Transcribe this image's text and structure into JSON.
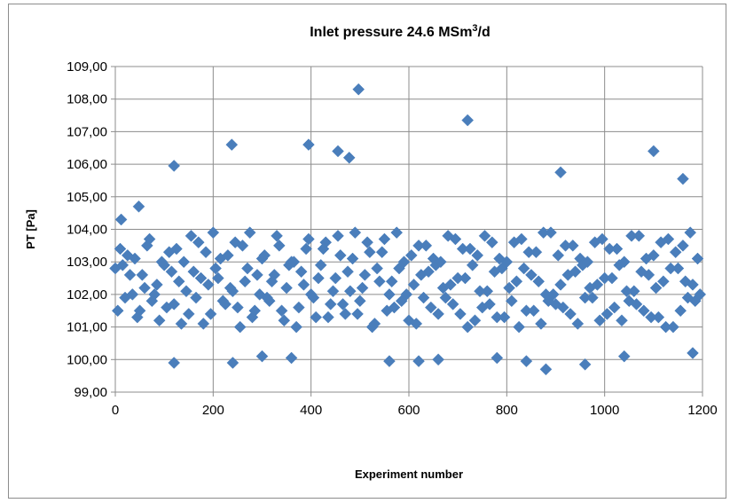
{
  "chart_data": {
    "type": "scatter",
    "title": "Inlet pressure 24.6 MSm",
    "title_superscript": "3",
    "title_suffix": "/d",
    "xlabel": "Experiment number",
    "ylabel": "PT [Pa]",
    "xlim": [
      0,
      1200
    ],
    "ylim": [
      99,
      109
    ],
    "xticks": [
      0,
      200,
      400,
      600,
      800,
      1000,
      1200
    ],
    "yticks": [
      99,
      100,
      101,
      102,
      103,
      104,
      105,
      106,
      107,
      108,
      109
    ],
    "xtick_labels": [
      "0",
      "200",
      "400",
      "600",
      "800",
      "1000",
      "1200"
    ],
    "ytick_labels": [
      "99,00",
      "100,00",
      "101,00",
      "102,00",
      "103,00",
      "104,00",
      "105,00",
      "106,00",
      "107,00",
      "108,00",
      "109,00"
    ],
    "grid": true,
    "legend": "none",
    "marker": "diamond",
    "marker_color": "#4a7ebb",
    "series": [
      {
        "x": [
          0,
          10,
          20,
          30,
          40,
          50,
          60,
          70,
          80,
          90,
          100,
          110,
          120,
          130,
          140,
          150,
          160,
          170,
          180,
          190,
          200,
          210,
          220,
          230,
          240,
          250,
          260,
          270,
          280,
          290,
          300,
          310,
          320,
          330,
          340,
          350,
          360,
          370,
          380,
          390,
          400,
          410,
          420,
          430,
          440,
          450,
          460,
          470,
          480,
          490,
          500,
          510,
          520,
          530,
          540,
          550,
          560,
          570,
          580,
          590,
          600,
          610,
          620,
          630,
          640,
          650,
          660,
          670,
          680,
          690,
          700,
          710,
          720,
          730,
          740,
          750,
          760,
          770,
          780,
          790,
          800,
          810,
          820,
          830,
          840,
          850,
          860,
          870,
          880,
          890,
          900,
          910,
          920,
          930,
          940,
          950,
          960,
          970,
          980,
          990,
          1000,
          1010,
          1020,
          1030,
          1040,
          1050,
          1060,
          1070,
          1080,
          1090,
          1100,
          1110,
          1120,
          1130,
          1140,
          1150,
          1160,
          1170,
          1180,
          1190,
          5,
          15,
          25,
          35,
          45,
          55,
          65,
          75,
          85,
          95,
          105,
          115,
          125,
          135,
          145,
          155,
          165,
          175,
          185,
          195,
          205,
          215,
          225,
          235,
          245,
          255,
          265,
          275,
          285,
          295,
          305,
          315,
          325,
          335,
          345,
          355,
          365,
          375,
          385,
          395,
          405,
          415,
          425,
          435,
          445,
          455,
          465,
          475,
          485,
          495,
          505,
          515,
          525,
          535,
          545,
          555,
          565,
          575,
          585,
          595,
          605,
          615,
          625,
          635,
          645,
          655,
          665,
          675,
          685,
          695,
          705,
          715,
          725,
          735,
          745,
          755,
          765,
          775,
          785,
          795,
          805,
          815,
          825,
          835,
          845,
          855,
          865,
          875,
          885,
          895,
          905,
          915,
          925,
          935,
          945,
          955,
          965,
          975,
          985,
          995,
          1005,
          1015,
          1025,
          1035,
          1045,
          1055,
          1065,
          1075,
          1085,
          1095,
          1105,
          1115,
          1125,
          1135,
          1145,
          1155,
          1165,
          1175,
          1185,
          1195,
          12,
          48,
          120,
          238,
          395,
          455,
          478,
          497,
          720,
          1100,
          1160,
          910,
          120,
          560,
          880,
          620,
          960,
          240,
          300,
          360,
          660,
          780,
          840,
          1040,
          1180
        ],
        "y": [
          102.8,
          103.4,
          101.9,
          102.6,
          103.1,
          101.5,
          102.2,
          103.7,
          102.0,
          101.2,
          102.9,
          103.3,
          101.7,
          102.4,
          103.0,
          101.4,
          102.7,
          103.6,
          101.1,
          102.3,
          103.9,
          102.5,
          101.8,
          103.2,
          102.1,
          101.6,
          103.5,
          102.8,
          101.3,
          102.6,
          103.1,
          101.9,
          102.4,
          103.8,
          101.5,
          102.2,
          103.0,
          101.0,
          102.7,
          103.4,
          102.0,
          101.3,
          102.9,
          103.6,
          101.7,
          102.5,
          103.2,
          101.4,
          102.1,
          103.9,
          101.8,
          102.6,
          103.3,
          101.1,
          102.4,
          103.7,
          102.0,
          101.6,
          102.8,
          103.0,
          101.2,
          102.3,
          103.5,
          101.9,
          102.7,
          103.1,
          101.4,
          102.2,
          103.8,
          101.7,
          102.5,
          103.4,
          101.0,
          102.9,
          103.2,
          101.6,
          102.1,
          103.6,
          101.3,
          102.8,
          103.0,
          101.8,
          102.4,
          103.7,
          101.5,
          102.6,
          103.3,
          101.1,
          102.0,
          103.9,
          101.7,
          102.3,
          103.5,
          101.4,
          102.7,
          103.1,
          101.9,
          102.2,
          103.6,
          101.2,
          102.5,
          103.4,
          101.6,
          102.9,
          103.0,
          101.8,
          102.1,
          103.8,
          101.5,
          102.6,
          103.2,
          101.3,
          102.4,
          103.7,
          101.0,
          102.8,
          103.5,
          101.9,
          102.3,
          103.1,
          101.5,
          102.9,
          103.2,
          102.0,
          101.3,
          102.6,
          103.5,
          101.8,
          102.3,
          103.0,
          101.6,
          102.7,
          103.4,
          101.1,
          102.1,
          103.8,
          101.9,
          102.5,
          103.3,
          101.4,
          102.8,
          103.1,
          101.7,
          102.2,
          103.6,
          101.0,
          102.4,
          103.9,
          101.5,
          102.0,
          103.2,
          101.8,
          102.6,
          103.5,
          101.2,
          102.9,
          103.0,
          101.6,
          102.3,
          103.7,
          101.9,
          102.5,
          103.4,
          101.3,
          102.1,
          103.8,
          101.7,
          102.7,
          103.1,
          101.4,
          102.2,
          103.6,
          101.0,
          102.8,
          103.3,
          101.5,
          102.4,
          103.9,
          101.8,
          102.0,
          103.2,
          101.1,
          102.6,
          103.5,
          101.6,
          102.9,
          103.0,
          101.9,
          102.3,
          103.7,
          101.4,
          102.5,
          103.4,
          101.2,
          102.1,
          103.8,
          101.7,
          102.7,
          103.1,
          101.3,
          102.2,
          103.6,
          101.0,
          102.8,
          103.3,
          101.5,
          102.4,
          103.9,
          101.8,
          102.0,
          103.2,
          101.6,
          102.6,
          103.5,
          101.1,
          102.9,
          103.0,
          101.9,
          102.3,
          103.7,
          101.4,
          102.5,
          103.4,
          101.2,
          102.1,
          103.8,
          101.7,
          102.7,
          103.1,
          101.3,
          102.2,
          103.6,
          101.0,
          102.8,
          103.3,
          101.5,
          102.4,
          103.9,
          101.8,
          102.0,
          104.3,
          104.7,
          105.95,
          106.6,
          106.6,
          106.4,
          106.2,
          108.3,
          107.35,
          106.4,
          105.55,
          105.75,
          99.9,
          99.95,
          99.7,
          99.95,
          99.85,
          99.9,
          100.1,
          100.05,
          100.0,
          100.05,
          99.95,
          100.1,
          100.2
        ]
      }
    ]
  }
}
